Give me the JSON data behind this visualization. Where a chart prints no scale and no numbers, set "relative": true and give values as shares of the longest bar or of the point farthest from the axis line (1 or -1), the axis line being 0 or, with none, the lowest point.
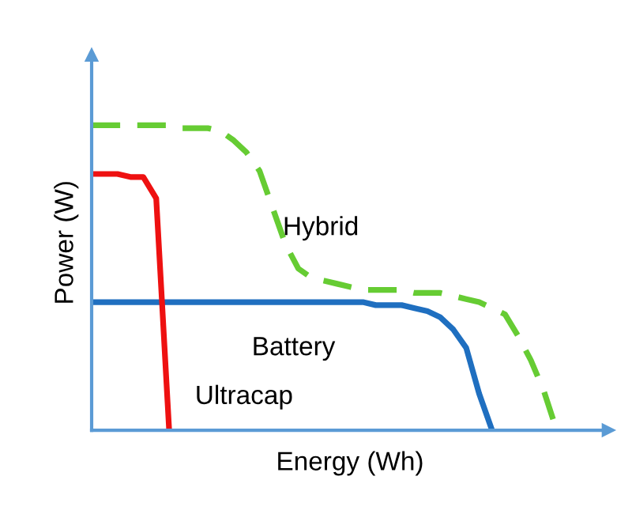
{
  "chart_data": {
    "type": "line",
    "relative": true,
    "xlabel": "Energy (Wh)",
    "ylabel": "Power (W)",
    "categories": [
      null,
      null,
      null,
      null,
      null,
      null,
      null,
      null,
      null,
      null,
      null,
      null,
      null,
      null,
      null,
      null,
      null,
      null,
      null,
      null,
      null,
      null,
      null,
      null,
      null,
      null,
      null,
      null,
      null,
      null,
      null,
      null,
      null,
      null,
      null,
      null,
      null
    ],
    "series": [
      {
        "name": "Hybrid",
        "color": "#66cc33",
        "line_style": "dashed",
        "values": [
          1,
          1,
          1,
          1,
          1,
          1,
          1,
          0.99,
          0.99,
          0.99,
          0.98,
          0.95,
          0.91,
          0.85,
          0.73,
          0.61,
          0.53,
          0.5,
          0.49,
          0.48,
          0.47,
          0.46,
          0.46,
          0.46,
          0.46,
          0.45,
          0.45,
          0.45,
          0.44,
          0.43,
          0.42,
          0.4,
          0.38,
          0.31,
          0.23,
          0.13,
          0
        ]
      },
      {
        "name": "Battery",
        "color": "#1f6fc0",
        "line_style": "solid",
        "values": [
          0.42,
          0.42,
          0.42,
          0.42,
          0.42,
          0.42,
          0.42,
          0.42,
          0.42,
          0.42,
          0.42,
          0.42,
          0.42,
          0.42,
          0.42,
          0.42,
          0.42,
          0.42,
          0.42,
          0.42,
          0.42,
          0.42,
          0.41,
          0.41,
          0.41,
          0.4,
          0.39,
          0.37,
          0.33,
          0.27,
          0.12,
          0,
          null,
          null,
          null,
          null,
          null
        ]
      },
      {
        "name": "Ultracap",
        "color": "#ee1111",
        "line_style": "solid",
        "values": [
          0.84,
          0.84,
          0.84,
          0.83,
          0.83,
          0.76,
          0,
          null,
          null,
          null,
          null,
          null,
          null,
          null,
          null,
          null,
          null,
          null,
          null,
          null,
          null,
          null,
          null,
          null,
          null,
          null,
          null,
          null,
          null,
          null,
          null,
          null,
          null,
          null,
          null,
          null,
          null
        ]
      }
    ]
  }
}
